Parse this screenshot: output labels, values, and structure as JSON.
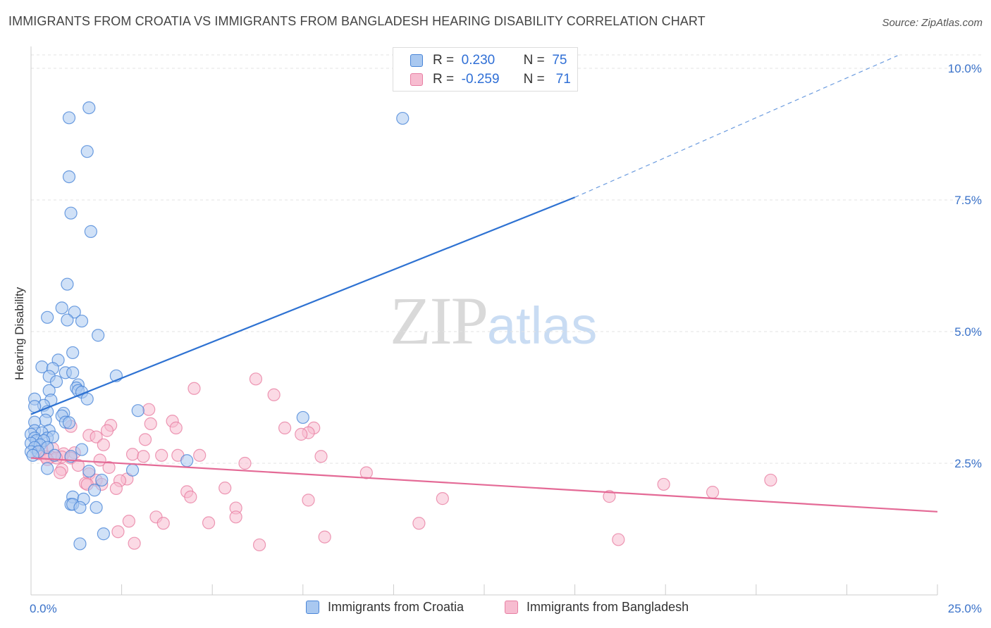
{
  "title": "IMMIGRANTS FROM CROATIA VS IMMIGRANTS FROM BANGLADESH HEARING DISABILITY CORRELATION CHART",
  "source": "Source: ZipAtlas.com",
  "watermark": {
    "zip": "ZIP",
    "atlas": "atlas"
  },
  "legend_top": {
    "rows": [
      {
        "r_label": "R =",
        "r_value": "0.230",
        "n_label": "N =",
        "n_value": "75"
      },
      {
        "r_label": "R =",
        "r_value": "-0.259",
        "n_label": "N =",
        "n_value": "71"
      }
    ]
  },
  "legend_bottom": {
    "series_a": "Immigrants from Croatia",
    "series_b": "Immigrants from Bangladesh"
  },
  "colors": {
    "croatia_fill": "#a9c8f0",
    "croatia_stroke": "#4a86d8",
    "croatia_line": "#2e72d2",
    "bangladesh_fill": "#f7bcd0",
    "bangladesh_stroke": "#e87fa3",
    "bangladesh_line": "#e46a96",
    "tick_label": "#3a72c9",
    "grid": "#e3e3e3"
  },
  "chart_data": {
    "type": "scatter",
    "xlabel": "",
    "ylabel": "Hearing Disability",
    "xlim": [
      0,
      25
    ],
    "ylim": [
      0,
      10.5
    ],
    "x_tick_labels": [
      {
        "value": 0,
        "label": "0.0%"
      },
      {
        "value": 25,
        "label": "25.0%"
      }
    ],
    "y_ticks": [
      {
        "value": 2.5,
        "label": "2.5%"
      },
      {
        "value": 5.0,
        "label": "5.0%"
      },
      {
        "value": 7.5,
        "label": "7.5%"
      },
      {
        "value": 10.0,
        "label": "10.0%"
      }
    ],
    "grid": "horizontal dashed",
    "series": [
      {
        "name": "Immigrants from Croatia",
        "r": 0.23,
        "n": 75,
        "trend": {
          "x0": 0,
          "y0": 3.43,
          "x1": 15.0,
          "y1": 7.55,
          "dashed_to_x": 23.9,
          "dashed_to_y": 10.24
        },
        "points": [
          [
            1.6,
            9.25
          ],
          [
            1.05,
            9.06
          ],
          [
            10.25,
            9.05
          ],
          [
            1.55,
            8.42
          ],
          [
            1.05,
            7.94
          ],
          [
            1.1,
            7.25
          ],
          [
            1.65,
            6.9
          ],
          [
            1.0,
            5.9
          ],
          [
            0.85,
            5.45
          ],
          [
            0.45,
            5.27
          ],
          [
            1.2,
            5.37
          ],
          [
            1.0,
            5.22
          ],
          [
            1.4,
            5.2
          ],
          [
            1.85,
            4.93
          ],
          [
            1.15,
            4.6
          ],
          [
            0.75,
            4.46
          ],
          [
            0.3,
            4.33
          ],
          [
            0.6,
            4.3
          ],
          [
            0.95,
            4.22
          ],
          [
            1.15,
            4.22
          ],
          [
            0.5,
            4.15
          ],
          [
            2.35,
            4.16
          ],
          [
            0.7,
            4.05
          ],
          [
            1.3,
            3.99
          ],
          [
            1.25,
            3.93
          ],
          [
            0.5,
            3.88
          ],
          [
            1.3,
            3.88
          ],
          [
            0.1,
            3.72
          ],
          [
            0.55,
            3.7
          ],
          [
            1.4,
            3.85
          ],
          [
            1.55,
            3.72
          ],
          [
            0.35,
            3.6
          ],
          [
            0.1,
            3.58
          ],
          [
            0.45,
            3.48
          ],
          [
            0.9,
            3.45
          ],
          [
            0.85,
            3.4
          ],
          [
            2.95,
            3.5
          ],
          [
            0.4,
            3.32
          ],
          [
            0.95,
            3.28
          ],
          [
            1.05,
            3.27
          ],
          [
            0.1,
            3.28
          ],
          [
            7.5,
            3.37
          ],
          [
            0.5,
            3.12
          ],
          [
            0.1,
            3.12
          ],
          [
            0.3,
            3.08
          ],
          [
            0.45,
            2.98
          ],
          [
            0.0,
            3.05
          ],
          [
            0.1,
            2.98
          ],
          [
            0.6,
            3.0
          ],
          [
            0.15,
            2.93
          ],
          [
            0.35,
            2.93
          ],
          [
            0.0,
            2.88
          ],
          [
            0.25,
            2.85
          ],
          [
            0.45,
            2.8
          ],
          [
            0.1,
            2.8
          ],
          [
            1.4,
            2.76
          ],
          [
            0.0,
            2.72
          ],
          [
            0.2,
            2.72
          ],
          [
            0.65,
            2.65
          ],
          [
            1.1,
            2.63
          ],
          [
            0.05,
            2.65
          ],
          [
            4.3,
            2.55
          ],
          [
            0.45,
            2.4
          ],
          [
            2.8,
            2.37
          ],
          [
            1.6,
            2.35
          ],
          [
            1.95,
            2.18
          ],
          [
            1.75,
            1.99
          ],
          [
            1.15,
            1.86
          ],
          [
            1.45,
            1.82
          ],
          [
            1.1,
            1.72
          ],
          [
            1.15,
            1.72
          ],
          [
            1.35,
            1.66
          ],
          [
            1.8,
            1.66
          ],
          [
            1.35,
            0.97
          ],
          [
            2.0,
            1.16
          ]
        ]
      },
      {
        "name": "Immigrants from Bangladesh",
        "r": -0.259,
        "n": 71,
        "trend": {
          "x0": 0,
          "y0": 2.6,
          "x1": 25.0,
          "y1": 1.58
        },
        "points": [
          [
            6.2,
            4.1
          ],
          [
            4.5,
            3.92
          ],
          [
            6.7,
            3.8
          ],
          [
            3.25,
            3.52
          ],
          [
            3.9,
            3.3
          ],
          [
            2.2,
            3.22
          ],
          [
            3.3,
            3.25
          ],
          [
            1.1,
            3.2
          ],
          [
            2.1,
            3.12
          ],
          [
            7.0,
            3.17
          ],
          [
            7.8,
            3.17
          ],
          [
            4.0,
            3.17
          ],
          [
            7.65,
            3.08
          ],
          [
            7.45,
            3.05
          ],
          [
            1.6,
            3.03
          ],
          [
            1.8,
            3.0
          ],
          [
            3.15,
            2.95
          ],
          [
            2.0,
            2.85
          ],
          [
            0.3,
            2.75
          ],
          [
            0.6,
            2.78
          ],
          [
            1.2,
            2.7
          ],
          [
            0.9,
            2.68
          ],
          [
            2.8,
            2.67
          ],
          [
            3.6,
            2.65
          ],
          [
            4.05,
            2.65
          ],
          [
            4.65,
            2.65
          ],
          [
            3.1,
            2.63
          ],
          [
            8.0,
            2.63
          ],
          [
            0.2,
            2.68
          ],
          [
            0.55,
            2.62
          ],
          [
            0.85,
            2.62
          ],
          [
            1.1,
            2.6
          ],
          [
            0.7,
            2.6
          ],
          [
            0.4,
            2.62
          ],
          [
            0.45,
            2.57
          ],
          [
            1.9,
            2.56
          ],
          [
            5.9,
            2.5
          ],
          [
            1.3,
            2.46
          ],
          [
            2.15,
            2.42
          ],
          [
            0.85,
            2.38
          ],
          [
            9.25,
            2.32
          ],
          [
            1.6,
            2.3
          ],
          [
            0.8,
            2.32
          ],
          [
            2.65,
            2.2
          ],
          [
            2.45,
            2.17
          ],
          [
            1.8,
            2.18
          ],
          [
            1.5,
            2.12
          ],
          [
            1.55,
            2.1
          ],
          [
            1.95,
            2.1
          ],
          [
            20.4,
            2.18
          ],
          [
            17.45,
            2.1
          ],
          [
            2.35,
            2.02
          ],
          [
            5.35,
            2.03
          ],
          [
            18.8,
            1.95
          ],
          [
            4.3,
            1.96
          ],
          [
            4.4,
            1.86
          ],
          [
            15.95,
            1.87
          ],
          [
            11.35,
            1.83
          ],
          [
            7.65,
            1.8
          ],
          [
            5.65,
            1.65
          ],
          [
            3.45,
            1.48
          ],
          [
            5.65,
            1.48
          ],
          [
            2.7,
            1.4
          ],
          [
            3.65,
            1.36
          ],
          [
            4.9,
            1.37
          ],
          [
            10.7,
            1.36
          ],
          [
            2.4,
            1.2
          ],
          [
            8.1,
            1.1
          ],
          [
            16.2,
            1.05
          ],
          [
            2.85,
            0.98
          ],
          [
            6.3,
            0.95
          ]
        ]
      }
    ]
  }
}
